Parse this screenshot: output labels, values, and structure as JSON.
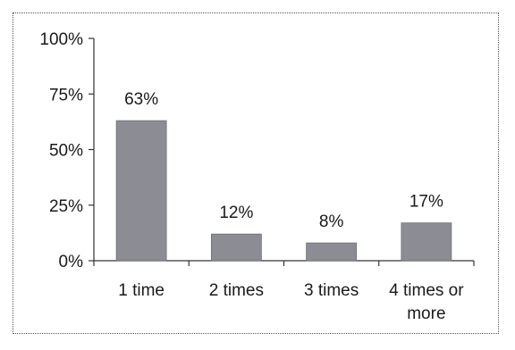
{
  "chart_data": {
    "type": "bar",
    "categories": [
      [
        "1 time"
      ],
      [
        "2 times"
      ],
      [
        "3 times"
      ],
      [
        "4 times or",
        "more"
      ]
    ],
    "values": [
      63,
      12,
      8,
      17
    ],
    "data_labels": [
      "63%",
      "12%",
      "8%",
      "17%"
    ],
    "y_ticks": [
      0,
      25,
      50,
      75,
      100
    ],
    "y_tick_labels": [
      "0%",
      "25%",
      "50%",
      "75%",
      "100%"
    ],
    "ylim": [
      0,
      100
    ],
    "grid": false,
    "bar_color": "#8c8c94",
    "title": "",
    "xlabel": "",
    "ylabel": ""
  }
}
